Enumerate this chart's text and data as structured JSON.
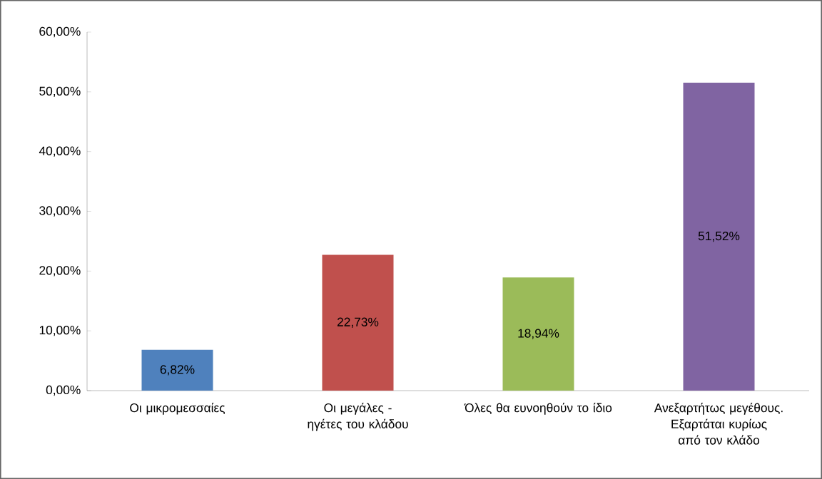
{
  "chart_data": {
    "type": "bar",
    "categories": [
      "Οι μικρομεσσαίες",
      "Οι μεγάλες - ηγέτες του κλάδου",
      "Όλες θα ευνοηθούν το ίδιο",
      "Ανεξαρτήτως μεγέθους. Εξαρτάται κυρίως από τον κλάδο"
    ],
    "values": [
      6.82,
      22.73,
      18.94,
      51.52
    ],
    "colors": [
      "#4f81bd",
      "#c0504d",
      "#9bbb59",
      "#8064a2"
    ],
    "value_labels": [
      "6,82%",
      "22,73%",
      "18,94%",
      "51,52%"
    ],
    "ylim": [
      0,
      60
    ],
    "yticks": [
      {
        "value": 0,
        "label": "0,00%"
      },
      {
        "value": 10,
        "label": "10,00%"
      },
      {
        "value": 20,
        "label": "20,00%"
      },
      {
        "value": 30,
        "label": "30,00%"
      },
      {
        "value": 40,
        "label": "40,00%"
      },
      {
        "value": 50,
        "label": "50,00%"
      },
      {
        "value": 60,
        "label": "60,00%"
      }
    ],
    "grid": false
  }
}
